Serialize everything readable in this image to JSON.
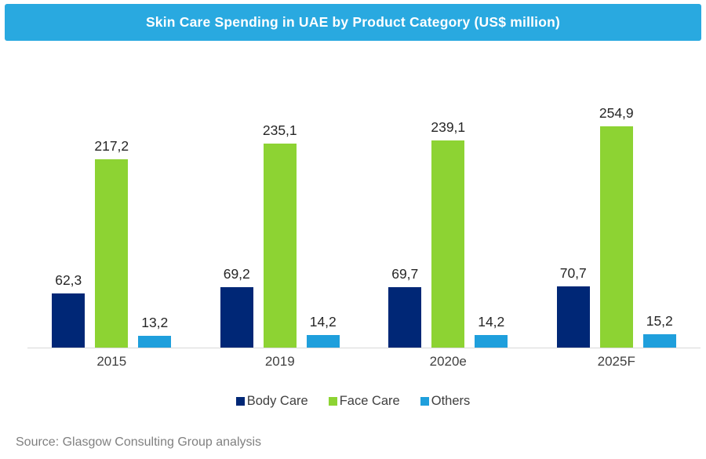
{
  "title": {
    "text": "Skin Care Spending in UAE by Product Category (US$ million)",
    "bg_color": "#29A9E0",
    "text_color": "#FFFFFF"
  },
  "chart_data": {
    "type": "bar",
    "title": "Skin Care Spending in UAE by Product Category (US$ million)",
    "categories": [
      "2015",
      "2019",
      "2020e",
      "2025F"
    ],
    "series": [
      {
        "name": "Body Care",
        "color": "#002776",
        "values": [
          62.3,
          69.2,
          69.7,
          70.7
        ],
        "labels": [
          "62,3",
          "69,2",
          "69,7",
          "70,7"
        ]
      },
      {
        "name": "Face Care",
        "color": "#8DD333",
        "values": [
          217.2,
          235.1,
          239.1,
          254.9
        ],
        "labels": [
          "217,2",
          "235,1",
          "239,1",
          "254,9"
        ]
      },
      {
        "name": "Others",
        "color": "#1F9FDC",
        "values": [
          13.2,
          14.2,
          14.2,
          15.2
        ],
        "labels": [
          "13,2",
          "14,2",
          "14,2",
          "15,2"
        ]
      }
    ],
    "xlabel": "",
    "ylabel": "",
    "ylim": [
      0,
      280
    ],
    "grid": false,
    "value_labels_shown": true,
    "legend_position": "bottom",
    "axis_line_color": "#D9D9D9"
  },
  "legend": {
    "items": [
      {
        "label": "Body Care",
        "color": "#002776"
      },
      {
        "label": "Face Care",
        "color": "#8DD333"
      },
      {
        "label": "Others",
        "color": "#1F9FDC"
      }
    ]
  },
  "source": {
    "text": "Source: Glasgow Consulting Group analysis"
  }
}
